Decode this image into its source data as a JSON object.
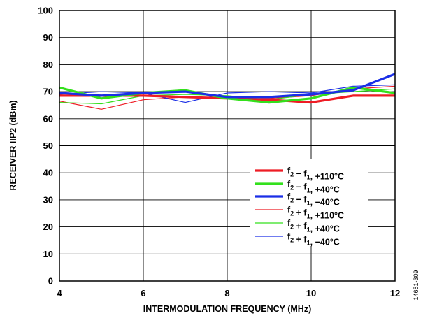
{
  "chart_data": {
    "type": "line",
    "xlabel": "INTERMODULATION FREQUENCY (MHz)",
    "ylabel": "RECEIVER IIP2 (dBm)",
    "xlim": [
      4,
      12
    ],
    "ylim": [
      0,
      100
    ],
    "xticks": [
      4,
      6,
      8,
      10,
      12
    ],
    "yticks": [
      0,
      10,
      20,
      30,
      40,
      50,
      60,
      70,
      80,
      90,
      100
    ],
    "xtick_labels": [
      "4",
      "6",
      "8",
      "10",
      "12"
    ],
    "ytick_labels": [
      "0",
      "10",
      "20",
      "30",
      "40",
      "50",
      "60",
      "70",
      "80",
      "90",
      "100"
    ],
    "grid": true,
    "legend_position": "lower-right",
    "figure_id": "14651-309",
    "series": [
      {
        "name": "f2 − f1, +110°C",
        "label_main": "f",
        "label_sub1": "2",
        "label_mid": " − f",
        "label_sub2": "1",
        "label_tail": ", +110°C",
        "color": "#ee1c25",
        "weight": "thick",
        "x": [
          4,
          5,
          6,
          7,
          8,
          9,
          10,
          11,
          12
        ],
        "values": [
          68.5,
          68.5,
          68.5,
          68,
          67.5,
          67,
          66,
          68.5,
          68.5
        ]
      },
      {
        "name": "f2 − f1, +40°C",
        "label_main": "f",
        "label_sub1": "2",
        "label_mid": " − f",
        "label_sub2": "1",
        "label_tail": ", +40°C",
        "color": "#33e01c",
        "weight": "thick",
        "x": [
          4,
          5,
          6,
          7,
          8,
          9,
          10,
          11,
          12
        ],
        "values": [
          71.5,
          67.5,
          69.5,
          70.5,
          67.5,
          66,
          67.5,
          71.5,
          69.5
        ]
      },
      {
        "name": "f2 − f1, −40°C",
        "label_main": "f",
        "label_sub1": "2",
        "label_mid": " − f",
        "label_sub2": "1",
        "label_tail": ", −40°C",
        "color": "#1a2ee6",
        "weight": "thick",
        "x": [
          4,
          5,
          6,
          7,
          8,
          9,
          10,
          11,
          12
        ],
        "values": [
          69.5,
          68.5,
          69.5,
          70,
          68,
          68,
          69,
          70.5,
          76.5
        ]
      },
      {
        "name": "f2 + f1, +110°C",
        "label_main": "f",
        "label_sub1": "2",
        "label_mid": " + f",
        "label_sub2": "1",
        "label_tail": ", +110°C",
        "color": "#ee1c25",
        "weight": "thin",
        "x": [
          4,
          5,
          6,
          7,
          8,
          9,
          10,
          11,
          12
        ],
        "values": [
          66.5,
          63.5,
          67,
          68,
          67.5,
          67.5,
          68.5,
          71,
          72
        ]
      },
      {
        "name": "f2 + f1, +40°C",
        "label_main": "f",
        "label_sub1": "2",
        "label_mid": " + f",
        "label_sub2": "1",
        "label_tail": ", +40°C",
        "color": "#33e01c",
        "weight": "thin",
        "x": [
          4,
          5,
          6,
          7,
          8,
          9,
          10,
          11,
          12
        ],
        "values": [
          66,
          65.5,
          68.5,
          69,
          68.5,
          67,
          69,
          70,
          71
        ]
      },
      {
        "name": "f2 + f1, −40°C",
        "label_main": "f",
        "label_sub1": "2",
        "label_mid": " + f",
        "label_sub2": "1",
        "label_tail": ", −40°C",
        "color": "#1a2ee6",
        "weight": "thin",
        "x": [
          4,
          5,
          6,
          7,
          8,
          9,
          10,
          11,
          12
        ],
        "values": [
          69,
          70,
          69.5,
          66,
          69.5,
          70,
          69.5,
          72,
          72.5
        ]
      }
    ]
  }
}
